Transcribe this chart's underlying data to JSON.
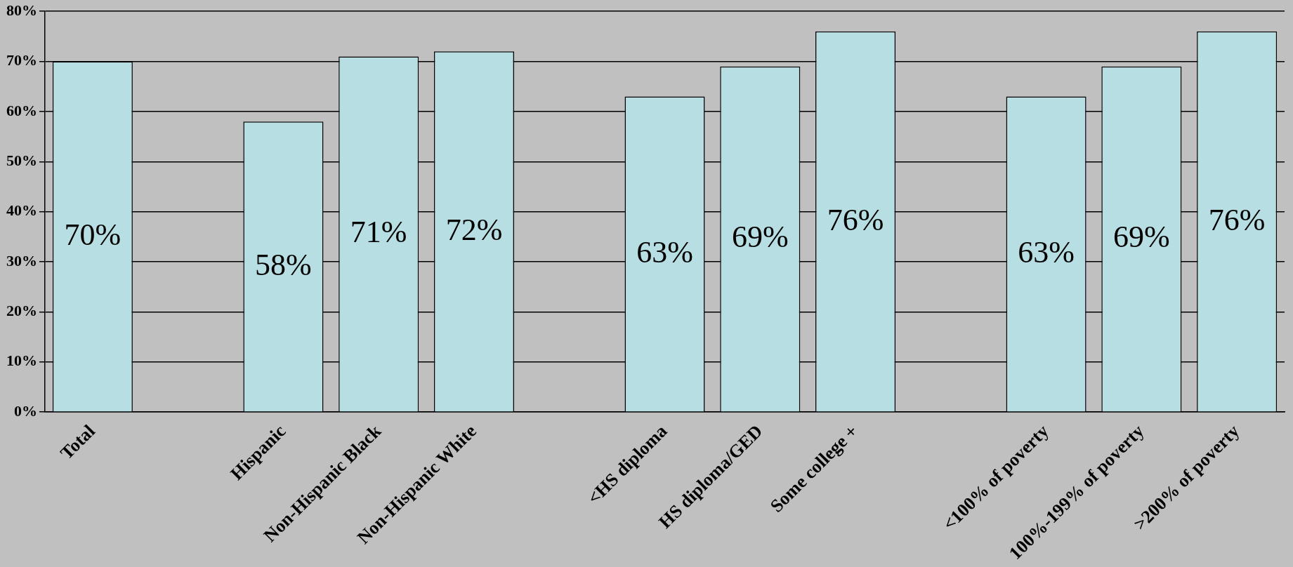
{
  "chart_data": {
    "type": "bar",
    "categories": [
      "Total",
      null,
      "Hispanic",
      "Non-Hispanic Black",
      "Non-Hispanic White",
      null,
      "<HS diploma",
      "HS diploma/GED",
      "Some college +",
      null,
      "<100% of poverty",
      "100%-199% of poverty",
      ">200% of poverty"
    ],
    "values": [
      70,
      null,
      58,
      71,
      72,
      null,
      63,
      69,
      76,
      null,
      63,
      69,
      76
    ],
    "value_labels": [
      "70%",
      null,
      "58%",
      "71%",
      "72%",
      null,
      "63%",
      "69%",
      "76%",
      null,
      "63%",
      "69%",
      "76%"
    ],
    "color": "#b7dfe3",
    "ylim": [
      0,
      80
    ],
    "yticks": [
      {
        "value": 0,
        "label": "0%"
      },
      {
        "value": 10,
        "label": "10%"
      },
      {
        "value": 20,
        "label": "20%"
      },
      {
        "value": 30,
        "label": "30%"
      },
      {
        "value": 40,
        "label": "40%"
      },
      {
        "value": 50,
        "label": "50%"
      },
      {
        "value": 60,
        "label": "60%"
      },
      {
        "value": 70,
        "label": "70%"
      },
      {
        "value": 80,
        "label": "80%"
      }
    ],
    "grid": "y",
    "legend": false
  }
}
